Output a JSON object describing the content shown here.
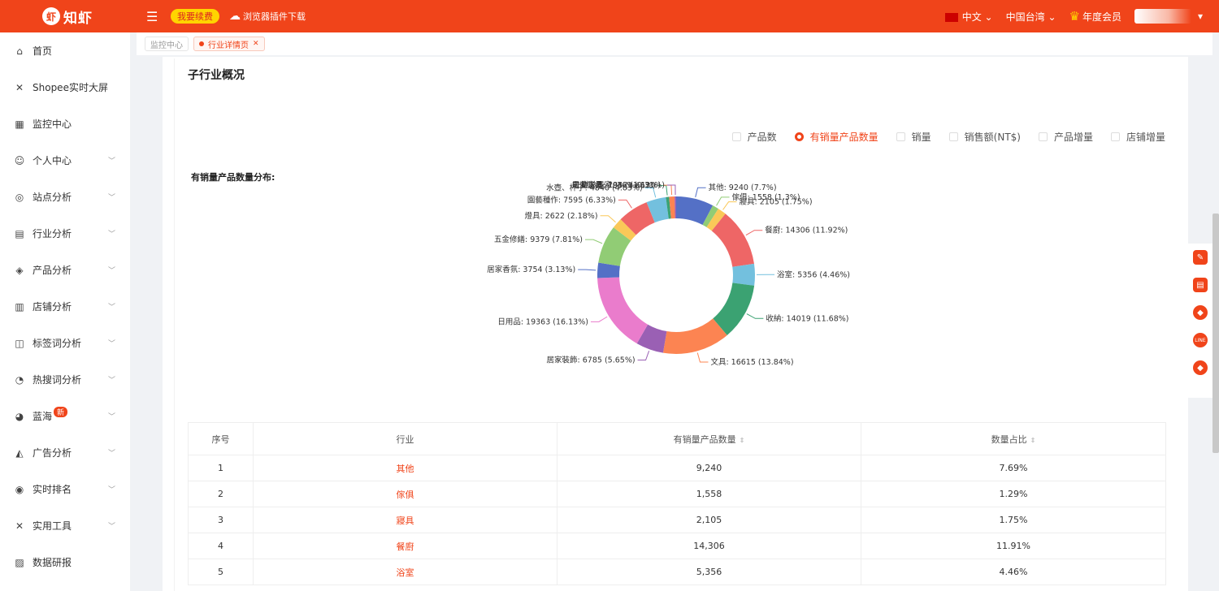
{
  "topbar": {
    "logo_mark": "虾",
    "logo_text": "知虾",
    "cta": "我要续费",
    "plugin": "浏览器插件下载",
    "language": "中文",
    "region": "中国台湾",
    "membership": "年度会员"
  },
  "sidebar": {
    "items": [
      {
        "label": "首页",
        "icon": "⌂",
        "chevron": false
      },
      {
        "label": "Shopee实时大屏",
        "icon": "✕",
        "chevron": false
      },
      {
        "label": "监控中心",
        "icon": "▦",
        "chevron": false
      },
      {
        "label": "个人中心",
        "icon": "☺",
        "chevron": true
      },
      {
        "label": "站点分析",
        "icon": "◎",
        "chevron": true
      },
      {
        "label": "行业分析",
        "icon": "▤",
        "chevron": true
      },
      {
        "label": "产品分析",
        "icon": "◈",
        "chevron": true
      },
      {
        "label": "店铺分析",
        "icon": "▥",
        "chevron": true
      },
      {
        "label": "标签词分析",
        "icon": "◫",
        "chevron": true
      },
      {
        "label": "热搜词分析",
        "icon": "◔",
        "chevron": true
      },
      {
        "label": "蓝海",
        "icon": "◕",
        "chevron": true,
        "badge": "新"
      },
      {
        "label": "广告分析",
        "icon": "◭",
        "chevron": true
      },
      {
        "label": "实时排名",
        "icon": "◉",
        "chevron": true
      },
      {
        "label": "实用工具",
        "icon": "✕",
        "chevron": true
      },
      {
        "label": "数据研报",
        "icon": "▨",
        "chevron": false
      }
    ]
  },
  "breadcrumbs": {
    "first": "监控中心",
    "second": "行业详情页"
  },
  "card": {
    "title": "子行业概况"
  },
  "radios": [
    {
      "label": "产品数",
      "selected": false
    },
    {
      "label": "有销量产品数量",
      "selected": true
    },
    {
      "label": "销量",
      "selected": false
    },
    {
      "label": "销售额(NT$)",
      "selected": false
    },
    {
      "label": "产品增量",
      "selected": false
    },
    {
      "label": "店铺增量",
      "selected": false
    }
  ],
  "chart_data": {
    "type": "pie",
    "title": "有销量产品数量分布:",
    "donut": true,
    "slices": [
      {
        "name": "其他",
        "value": 9240,
        "pct": "7.7%",
        "color": "#5470c6"
      },
      {
        "name": "傢俱",
        "value": 1558,
        "pct": "1.3%",
        "color": "#91cc75"
      },
      {
        "name": "寢具",
        "value": 2105,
        "pct": "1.75%",
        "color": "#fac858"
      },
      {
        "name": "餐廚",
        "value": 14306,
        "pct": "11.92%",
        "color": "#ee6666"
      },
      {
        "name": "浴室",
        "value": 5356,
        "pct": "4.46%",
        "color": "#73c0de"
      },
      {
        "name": "收納",
        "value": 14019,
        "pct": "11.68%",
        "color": "#3ba272"
      },
      {
        "name": "文具",
        "value": 16615,
        "pct": "13.84%",
        "color": "#fc8452"
      },
      {
        "name": "居家裝飾",
        "value": 6785,
        "pct": "5.65%",
        "color": "#9a60b4"
      },
      {
        "name": "日用品",
        "value": 19363,
        "pct": "16.13%",
        "color": "#ea7ccc"
      },
      {
        "name": "居家香氛",
        "value": 3754,
        "pct": "3.13%",
        "color": "#5470c6"
      },
      {
        "name": "五金修繕",
        "value": 9379,
        "pct": "7.81%",
        "color": "#91cc75"
      },
      {
        "name": "燈具",
        "value": 2622,
        "pct": "2.18%",
        "color": "#fac858"
      },
      {
        "name": "園藝種作",
        "value": 7595,
        "pct": "6.33%",
        "color": "#ee6666"
      },
      {
        "name": "水壺、杯子",
        "value": 4840,
        "pct": "4.03%",
        "color": "#73c0de"
      },
      {
        "name": "居安防護",
        "value": 795,
        "pct": "0.66%",
        "color": "#3ba272"
      },
      {
        "name": "電動工具",
        "value": 1342,
        "pct": "1.12%",
        "color": "#fc8452"
      },
      {
        "name": "樂齡居家",
        "value": 369,
        "pct": "0.31%",
        "color": "#9a60b4"
      }
    ]
  },
  "table": {
    "headers": [
      "序号",
      "行业",
      "有销量产品数量",
      "数量占比"
    ],
    "sort_symbol": "⇕",
    "rows": [
      {
        "idx": "1",
        "name": "其他",
        "count": "9,240",
        "pct": "7.69%"
      },
      {
        "idx": "2",
        "name": "傢俱",
        "count": "1,558",
        "pct": "1.29%"
      },
      {
        "idx": "3",
        "name": "寢具",
        "count": "2,105",
        "pct": "1.75%"
      },
      {
        "idx": "4",
        "name": "餐廚",
        "count": "14,306",
        "pct": "11.91%"
      },
      {
        "idx": "5",
        "name": "浴室",
        "count": "5,356",
        "pct": "4.46%"
      }
    ]
  },
  "floating": [
    "✎",
    "▤",
    "◆",
    "LINE",
    "◆"
  ]
}
